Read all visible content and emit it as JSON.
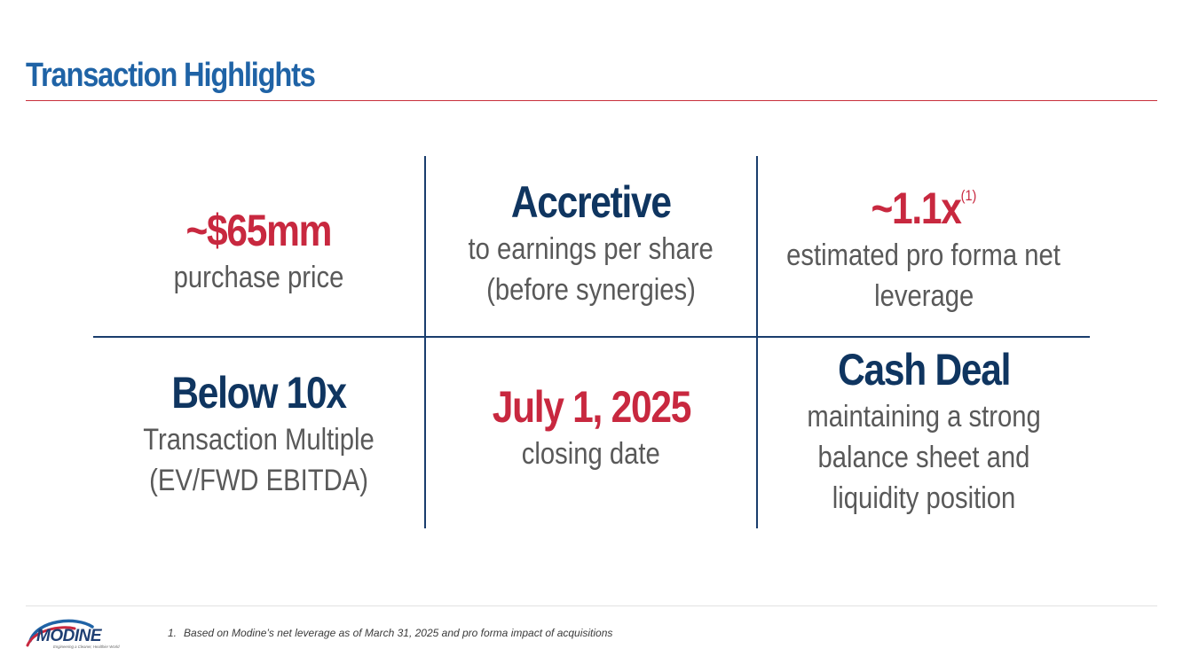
{
  "title": "Transaction Highlights",
  "highlights": [
    {
      "headline": "~$65mm",
      "superscript": "",
      "lines": [
        "purchase price"
      ],
      "color": "#c8283f"
    },
    {
      "headline": "Accretive",
      "superscript": "",
      "lines": [
        "to earnings per share",
        "(before synergies)"
      ],
      "color": "#0f3560"
    },
    {
      "headline": "~1.1x",
      "superscript": "(1)",
      "lines": [
        "estimated pro forma net",
        "leverage"
      ],
      "color": "#c8283f"
    },
    {
      "headline": "Below 10x",
      "superscript": "",
      "lines": [
        "Transaction Multiple",
        "(EV/FWD EBITDA)"
      ],
      "color": "#0f3560"
    },
    {
      "headline": "July 1, 2025",
      "superscript": "",
      "lines": [
        "closing date"
      ],
      "color": "#c8283f"
    },
    {
      "headline": "Cash Deal",
      "superscript": "",
      "lines": [
        "maintaining a strong",
        "balance sheet and",
        "liquidity position"
      ],
      "color": "#0f3560"
    }
  ],
  "logo": {
    "name": "MODINE",
    "tagline": "Engineering a Cleaner, Healthier World"
  },
  "footnote": {
    "number": "1.",
    "text": "Based on Modine’s net leverage as of March 31, 2025 and pro forma impact of acquisitions"
  },
  "colors": {
    "title": "#1f63a6",
    "accent_red": "#c8283f",
    "navy": "#0f3560",
    "divider": "#1a3d6d"
  }
}
